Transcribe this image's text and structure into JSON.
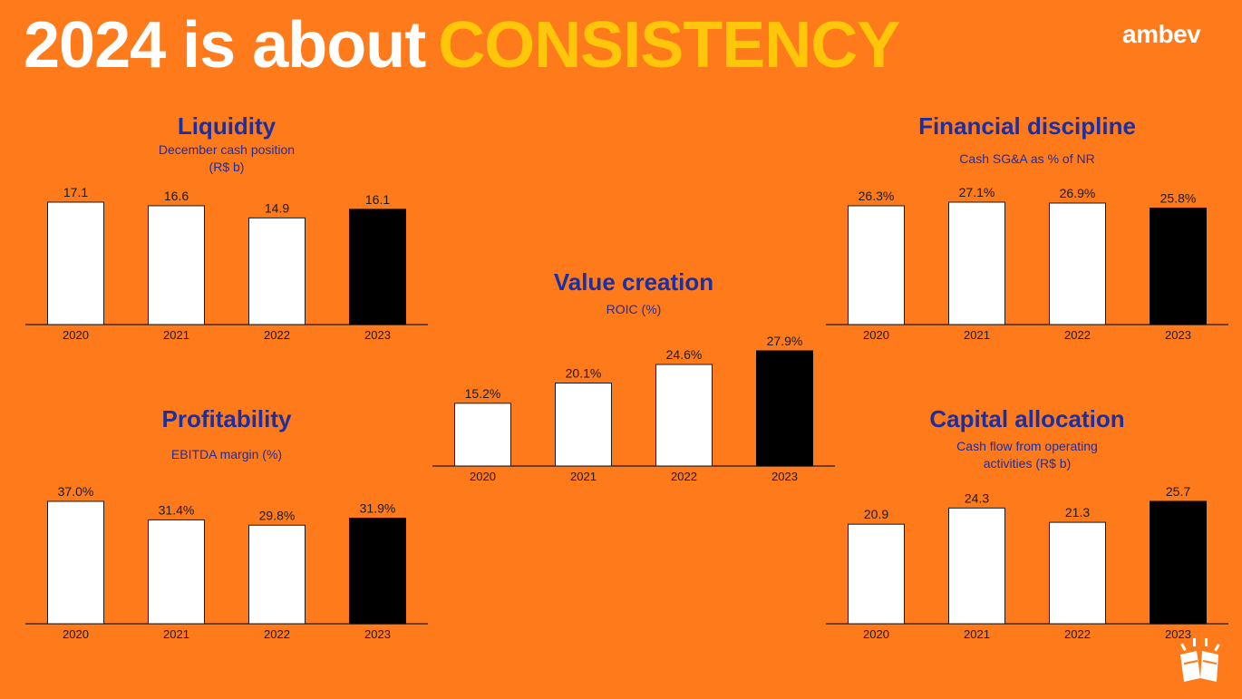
{
  "header": {
    "title_main": "2024 is about",
    "title_accent": "CONSISTENCY",
    "logo": "ambev"
  },
  "colors": {
    "background": "#FF7A1A",
    "accent": "#FFC60A",
    "panel_title": "#1B2FA0",
    "bar_highlight": "#000000",
    "bar_default": "#FFFFFF"
  },
  "icons": {
    "corner": "cheers-icon"
  },
  "chart_data": [
    {
      "id": "liquidity",
      "type": "bar",
      "title": "Liquidity",
      "subtitle": "December cash position\n(R$ b)",
      "categories": [
        "2020",
        "2021",
        "2022",
        "2023"
      ],
      "values": [
        17.1,
        16.6,
        14.9,
        16.1
      ],
      "labels": [
        "17.1",
        "16.6",
        "14.9",
        "16.1"
      ],
      "ylim": [
        0,
        17.1
      ],
      "highlight_index": 3,
      "grid": false
    },
    {
      "id": "financial-discipline",
      "type": "bar",
      "title": "Financial discipline",
      "subtitle": "Cash SG&A as % of NR",
      "categories": [
        "2020",
        "2021",
        "2022",
        "2023"
      ],
      "values": [
        26.3,
        27.1,
        26.9,
        25.8
      ],
      "labels": [
        "26.3%",
        "27.1%",
        "26.9%",
        "25.8%"
      ],
      "ylim": [
        0,
        27.1
      ],
      "highlight_index": 3,
      "grid": false
    },
    {
      "id": "value-creation",
      "type": "bar",
      "title": "Value creation",
      "subtitle": "ROIC (%)",
      "categories": [
        "2020",
        "2021",
        "2022",
        "2023"
      ],
      "values": [
        15.2,
        20.1,
        24.6,
        27.9
      ],
      "labels": [
        "15.2%",
        "20.1%",
        "24.6%",
        "27.9%"
      ],
      "ylim": [
        0,
        27.9
      ],
      "highlight_index": 3,
      "grid": false
    },
    {
      "id": "profitability",
      "type": "bar",
      "title": "Profitability",
      "subtitle": "EBITDA margin (%)",
      "categories": [
        "2020",
        "2021",
        "2022",
        "2023"
      ],
      "values": [
        37.0,
        31.4,
        29.8,
        31.9
      ],
      "labels": [
        "37.0%",
        "31.4%",
        "29.8%",
        "31.9%"
      ],
      "ylim": [
        0,
        37.0
      ],
      "highlight_index": 3,
      "grid": false
    },
    {
      "id": "capital-allocation",
      "type": "bar",
      "title": "Capital allocation",
      "subtitle": "Cash flow from operating\nactivities (R$ b)",
      "categories": [
        "2020",
        "2021",
        "2022",
        "2023"
      ],
      "values": [
        20.9,
        24.3,
        21.3,
        25.7
      ],
      "labels": [
        "20.9",
        "24.3",
        "21.3",
        "25.7"
      ],
      "ylim": [
        0,
        25.7
      ],
      "highlight_index": 3,
      "grid": false
    }
  ]
}
